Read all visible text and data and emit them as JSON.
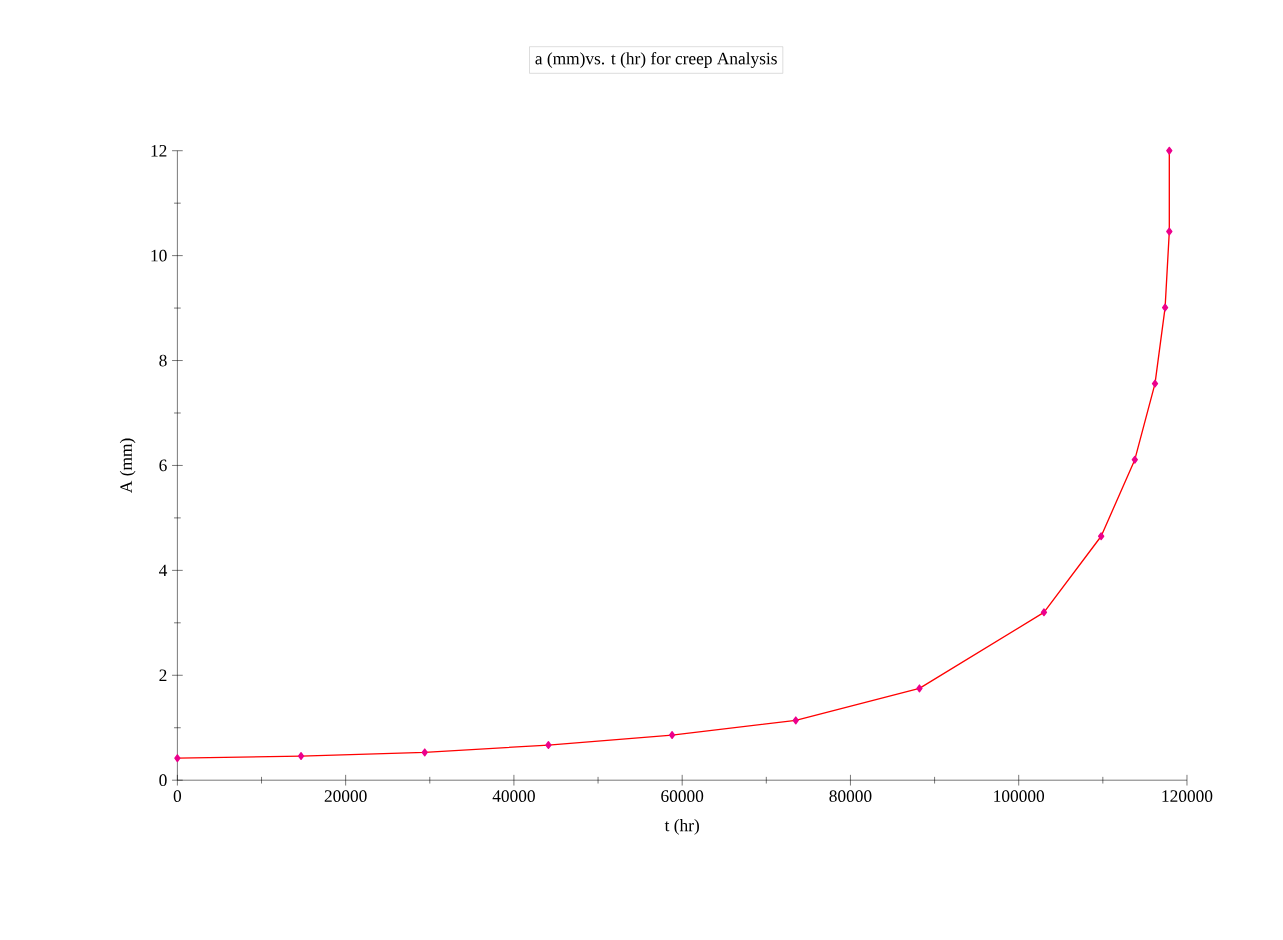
{
  "chart_data": {
    "type": "line",
    "title": "a (mm)vs. t (hr)  for creep  Analysis",
    "xlabel": "t (hr)",
    "ylabel": "A (mm)",
    "xlim": [
      0,
      120000
    ],
    "ylim": [
      0,
      12
    ],
    "xticks": [
      0,
      20000,
      40000,
      60000,
      80000,
      100000,
      120000
    ],
    "yticks": [
      0,
      2,
      4,
      6,
      8,
      10,
      12
    ],
    "marker": "diamond",
    "line_style": "solid",
    "series": [
      {
        "color": "#ff0000",
        "x": [
          0,
          14700,
          29400,
          44100,
          58800,
          73500,
          88200,
          103000,
          109800,
          113800,
          116200,
          117400,
          117900,
          117900
        ],
        "values": [
          0.42,
          0.46,
          0.53,
          0.67,
          0.86,
          1.14,
          1.75,
          3.2,
          4.65,
          6.11,
          7.56,
          9.01,
          10.46,
          12.0
        ]
      }
    ]
  }
}
